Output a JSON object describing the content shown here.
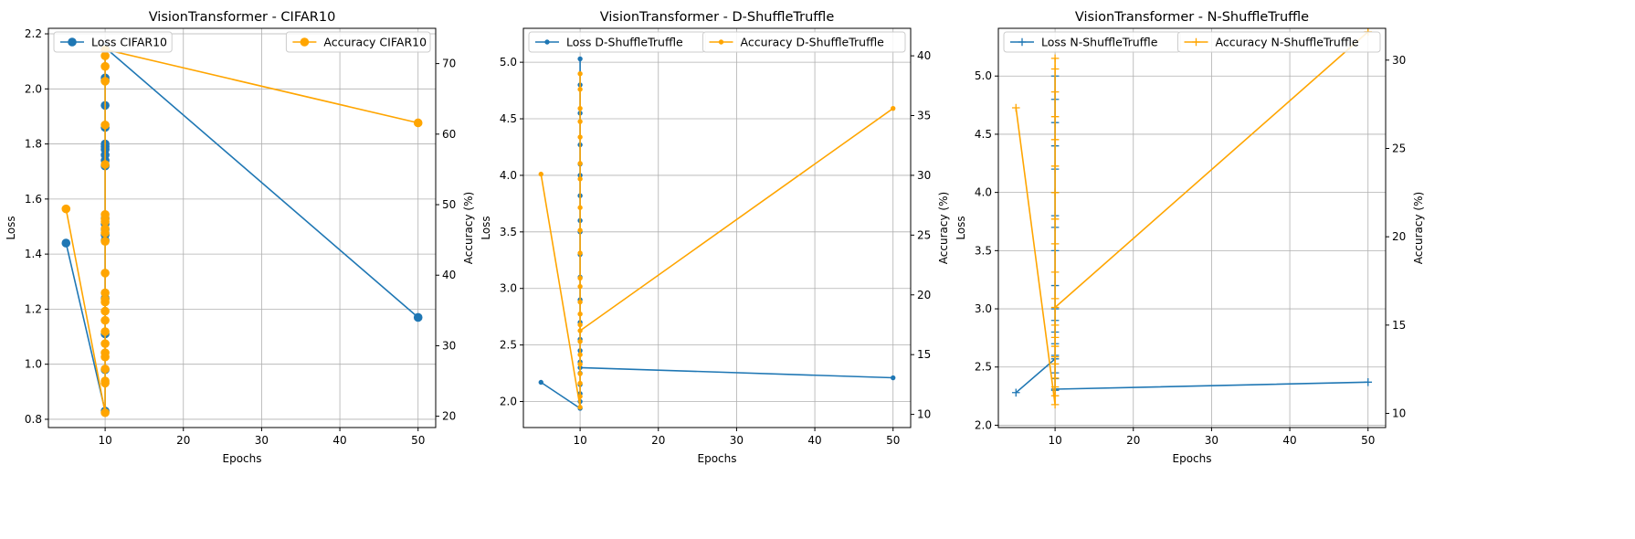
{
  "colors": {
    "loss": "#1f77b4",
    "accuracy": "#ffa500",
    "grid": "#b0b0b0"
  },
  "chart_data": [
    {
      "type": "line",
      "title": "VisionTransformer - CIFAR10",
      "xlabel": "Epochs",
      "ylabel": "Loss",
      "y2label": "Accuracy (%)",
      "xlim": [
        2.75,
        52.25
      ],
      "ylim": [
        0.77,
        2.22
      ],
      "y2lim": [
        18.4,
        75.0
      ],
      "xticks": [
        10,
        20,
        30,
        40,
        50
      ],
      "yticks": [
        0.8,
        1.0,
        1.2,
        1.4,
        1.6,
        1.8,
        2.0,
        2.2
      ],
      "y2ticks": [
        20,
        30,
        40,
        50,
        60,
        70
      ],
      "marker": "circle",
      "grid": true,
      "series": [
        {
          "name": "Loss CIFAR10",
          "axis": "left",
          "color": "#1f77b4",
          "x": [
            5,
            10,
            10,
            10,
            10,
            10,
            10,
            10,
            10,
            10,
            10,
            10,
            10,
            10,
            10,
            10,
            10,
            10,
            10,
            10,
            10,
            50
          ],
          "y": [
            1.44,
            0.83,
            0.98,
            1.11,
            1.24,
            1.45,
            1.47,
            1.49,
            1.51,
            1.53,
            1.72,
            1.74,
            1.76,
            1.78,
            1.79,
            1.8,
            1.86,
            1.94,
            2.03,
            2.04,
            2.15,
            1.17
          ]
        },
        {
          "name": "Accuracy CIFAR10",
          "axis": "right",
          "color": "#ffa500",
          "x": [
            5,
            10,
            10,
            10,
            10,
            10,
            10,
            10,
            10,
            10,
            10,
            10,
            10,
            10,
            10,
            10,
            10,
            10,
            10,
            10,
            10,
            10,
            10,
            10,
            10,
            10,
            10,
            50
          ],
          "y": [
            49.4,
            20.5,
            24.7,
            25.0,
            26.7,
            28.4,
            29.0,
            30.3,
            32.0,
            33.6,
            34.9,
            36.2,
            36.6,
            37.5,
            40.3,
            44.8,
            46.0,
            46.6,
            47.6,
            48.0,
            48.6,
            55.7,
            61.3,
            67.5,
            69.6,
            71.1,
            72.0,
            61.6
          ]
        }
      ]
    },
    {
      "type": "line",
      "title": "VisionTransformer - D-ShuffleTruffle",
      "xlabel": "Epochs",
      "ylabel": "Loss",
      "y2label": "Accuracy (%)",
      "xlim": [
        2.75,
        52.25
      ],
      "ylim": [
        1.77,
        5.3
      ],
      "y2lim": [
        8.9,
        42.3
      ],
      "xticks": [
        10,
        20,
        30,
        40,
        50
      ],
      "yticks": [
        2.0,
        2.5,
        3.0,
        3.5,
        4.0,
        4.5,
        5.0
      ],
      "y2ticks": [
        10,
        15,
        20,
        25,
        30,
        35,
        40
      ],
      "marker": "point",
      "grid": true,
      "series": [
        {
          "name": "Loss D-ShuffleTruffle",
          "axis": "left",
          "color": "#1f77b4",
          "x": [
            5,
            10,
            10,
            10,
            10,
            10,
            10,
            10,
            10,
            10,
            10,
            10,
            10,
            10,
            10,
            10,
            10,
            10,
            10,
            10,
            10,
            10,
            10,
            50
          ],
          "y": [
            2.17,
            1.94,
            2.0,
            2.07,
            2.15,
            2.25,
            2.35,
            2.45,
            2.55,
            2.7,
            2.9,
            3.1,
            3.3,
            3.5,
            3.6,
            3.82,
            4.0,
            4.1,
            4.27,
            4.55,
            4.8,
            5.03,
            2.3,
            2.21
          ]
        },
        {
          "name": "Accuracy D-ShuffleTruffle",
          "axis": "right",
          "color": "#ffa500",
          "x": [
            5,
            10,
            10,
            10,
            10,
            10,
            10,
            10,
            10,
            10,
            10,
            10,
            10,
            10,
            10,
            10,
            10,
            10,
            10,
            10,
            10,
            10,
            10,
            10,
            50
          ],
          "y": [
            30.1,
            10.6,
            11.5,
            12.6,
            13.4,
            14.2,
            15.0,
            16.1,
            17.5,
            18.4,
            19.4,
            20.7,
            21.4,
            23.5,
            25.4,
            27.3,
            29.7,
            31.0,
            33.2,
            34.5,
            35.6,
            37.2,
            38.5,
            17.0,
            35.6
          ]
        }
      ]
    },
    {
      "type": "line",
      "title": "VisionTransformer - N-ShuffleTruffle",
      "xlabel": "Epochs",
      "ylabel": "Loss",
      "y2label": "Accuracy (%)",
      "xlim": [
        2.75,
        52.25
      ],
      "ylim": [
        1.98,
        5.41
      ],
      "y2lim": [
        9.2,
        31.8
      ],
      "xticks": [
        10,
        20,
        30,
        40,
        50
      ],
      "yticks": [
        2.0,
        2.5,
        3.0,
        3.5,
        4.0,
        4.5,
        5.0
      ],
      "y2ticks": [
        10,
        15,
        20,
        25,
        30
      ],
      "marker": "plus",
      "grid": true,
      "series": [
        {
          "name": "Loss N-ShuffleTruffle",
          "axis": "left",
          "color": "#1f77b4",
          "x": [
            5,
            10,
            10,
            10,
            10,
            10,
            10,
            10,
            10,
            10,
            10,
            10,
            10,
            10,
            10,
            10,
            10,
            10,
            10,
            10,
            10,
            50
          ],
          "y": [
            2.28,
            2.57,
            2.4,
            2.3,
            2.45,
            2.6,
            2.7,
            2.8,
            2.9,
            3.0,
            3.2,
            3.5,
            3.7,
            3.8,
            4.0,
            4.2,
            4.4,
            4.6,
            4.8,
            5.0,
            2.31,
            2.37
          ]
        },
        {
          "name": "Accuracy N-ShuffleTruffle",
          "axis": "right",
          "color": "#ffa500",
          "x": [
            5,
            10,
            10,
            10,
            10,
            10,
            10,
            10,
            10,
            10,
            10,
            10,
            10,
            10,
            10,
            10,
            10,
            10,
            10,
            10,
            10,
            10,
            50
          ],
          "y": [
            27.3,
            10.5,
            11.0,
            11.5,
            12.0,
            12.8,
            13.2,
            13.8,
            14.3,
            15.0,
            16.5,
            18.0,
            19.6,
            21.0,
            22.5,
            24.0,
            25.5,
            26.8,
            28.2,
            29.5,
            30.1,
            16.0,
            31.6
          ]
        }
      ]
    }
  ]
}
